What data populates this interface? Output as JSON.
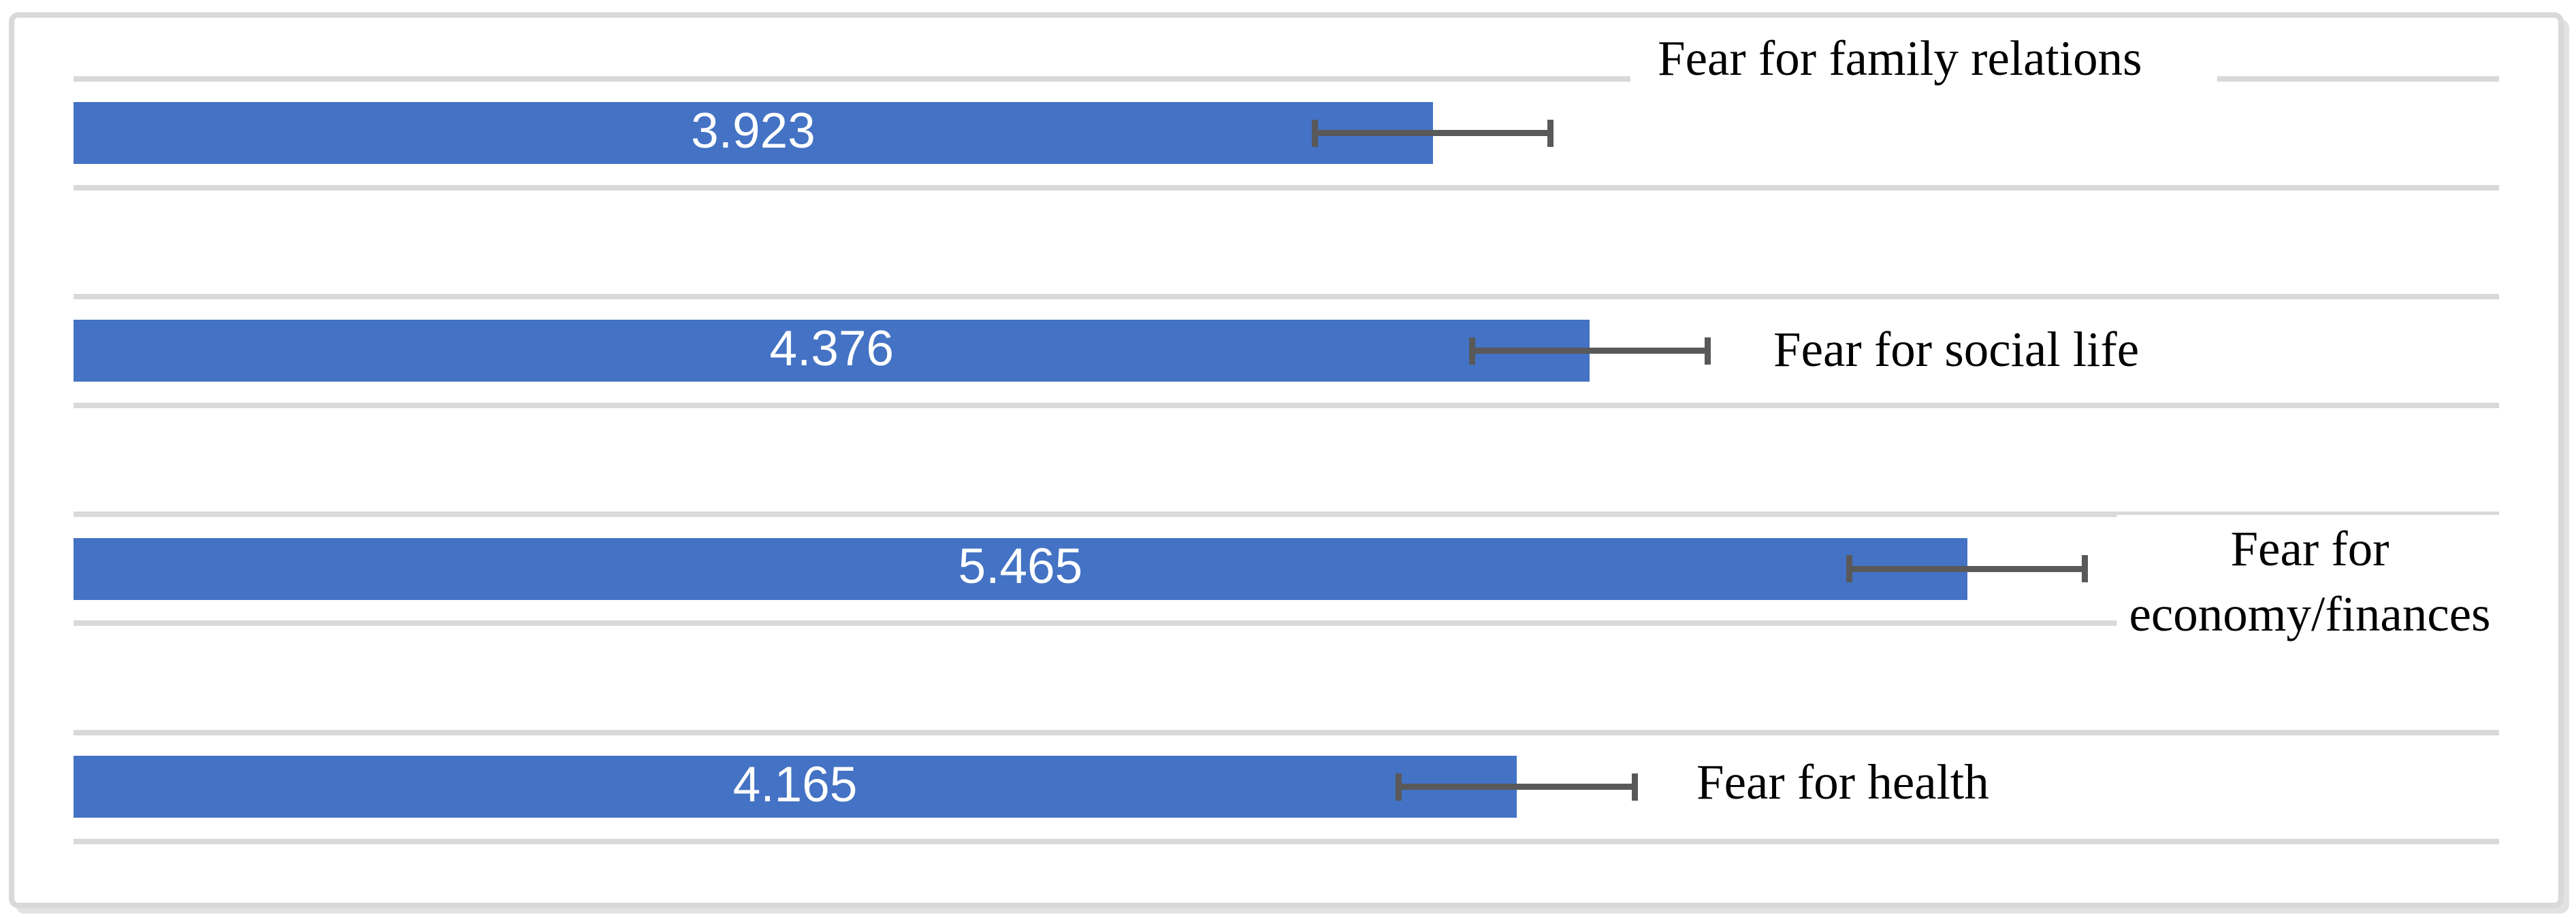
{
  "figure": {
    "background_color": "#ffffff",
    "frame_border_color": "#d9d9d9",
    "title": ""
  },
  "chart_data": {
    "type": "bar",
    "orientation": "horizontal",
    "title": "",
    "xlabel": "",
    "ylabel": "",
    "categories": [
      "Fear for family relations",
      "Fear for social life",
      "Fear for economy/finances",
      "Fear for health"
    ],
    "values": [
      3.923,
      4.376,
      5.465,
      4.165
    ],
    "value_labels": [
      "3.923",
      "4.376",
      "5.465",
      "4.165"
    ],
    "errors_plus_minus": [
      0.34,
      0.34,
      0.34,
      0.34
    ],
    "category_label_lines": [
      [
        "Fear for family relations"
      ],
      [
        "Fear for social life"
      ],
      [
        "Fear for",
        "economy/finances"
      ],
      [
        "Fear for health"
      ]
    ],
    "xlim": [
      0,
      7
    ],
    "axis_tick_labels": "none",
    "legend_position": "none",
    "grid": "horizontal category band gridlines, light gray, bars centered in alternating bands",
    "error_bars": "plus-minus horizontal whiskers with end caps at bar tip",
    "colors": {
      "bar": "#4472c4",
      "error_bar": "#595959",
      "gridline": "#d9d9d9",
      "value_label_text": "#ffffff",
      "category_label_text": "#000000",
      "category_label_background": "#ffffff"
    }
  }
}
